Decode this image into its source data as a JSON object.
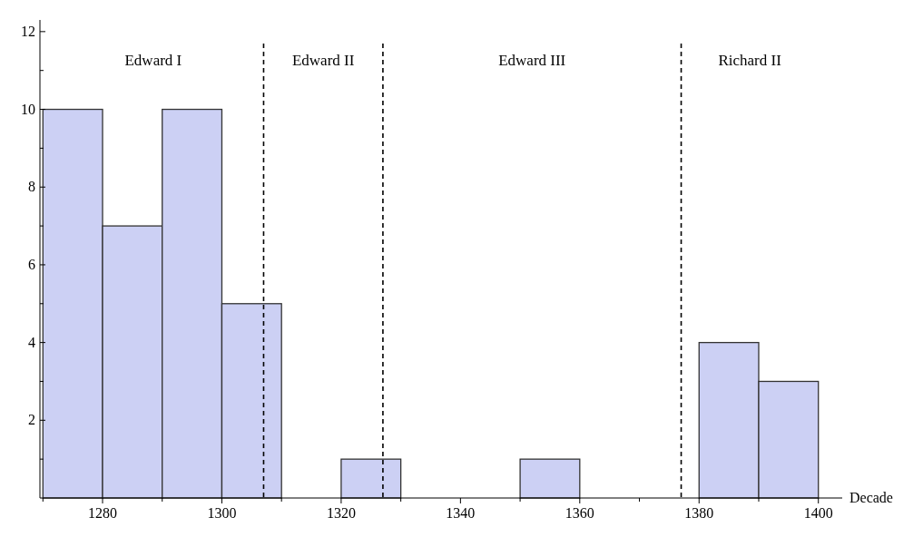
{
  "chart_data": {
    "type": "histogram",
    "xlabel": "Decade",
    "bins": [
      1270,
      1280,
      1290,
      1300,
      1310,
      1320,
      1330,
      1340,
      1350,
      1360,
      1370,
      1380,
      1390,
      1400
    ],
    "values": [
      10,
      7,
      10,
      5,
      0,
      1,
      0,
      0,
      1,
      0,
      0,
      4,
      3
    ],
    "color": "#ccd0f4",
    "xlim": [
      1269.5,
      1404
    ],
    "ylim": [
      0,
      12.3
    ],
    "xticks": [
      {
        "value": 1270,
        "label": null
      },
      1280,
      {
        "value": 1290,
        "label": null
      },
      1300,
      {
        "value": 1310,
        "label": null
      },
      1320,
      {
        "value": 1330,
        "label": null
      },
      1340,
      {
        "value": 1350,
        "label": null
      },
      1360,
      {
        "value": 1370,
        "label": null
      },
      1380,
      {
        "value": 1390,
        "label": null
      },
      1400
    ],
    "yticks": [
      {
        "value": 1,
        "label": null
      },
      2,
      {
        "value": 3,
        "label": null
      },
      4,
      {
        "value": 5,
        "label": null
      },
      6,
      {
        "value": 7,
        "label": null
      },
      8,
      {
        "value": 9,
        "label": null
      },
      10,
      {
        "value": 11,
        "label": null
      },
      12
    ],
    "ref_lines": [
      {
        "axis": "x",
        "value": 1307,
        "line_style": "dashed",
        "color": "#000000"
      },
      {
        "axis": "x",
        "value": 1327,
        "line_style": "dashed",
        "color": "#000000"
      },
      {
        "axis": "x",
        "value": 1377,
        "line_style": "dashed",
        "color": "#000000"
      }
    ],
    "annotations": [
      "Edward I",
      "Edward II",
      "Edward III",
      "Richard II"
    ]
  }
}
